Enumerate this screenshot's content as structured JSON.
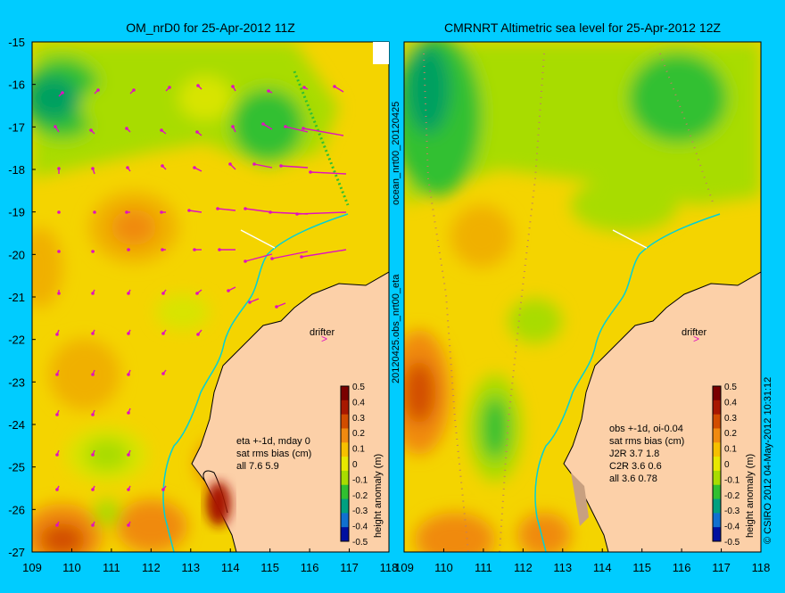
{
  "left_panel": {
    "title": "OM_nrD0 for 25-Apr-2012 11Z",
    "annotation_lines": [
      "eta +-1d, mday 0",
      "sat rms bias (cm)",
      "all 7.6 5.9"
    ],
    "drifter_label": "drifter"
  },
  "right_panel": {
    "title": "CMRNRT Altimetric sea level  for 25-Apr-2012 12Z",
    "annotation_lines": [
      "obs +-1d, oi-0.04",
      "sat rms bias (cm)",
      "J2R   3.7 1.8",
      "C2R   3.6 0.6",
      "all 3.6 0.78"
    ],
    "drifter_label": "drifter"
  },
  "x_ticks": [
    "109",
    "110",
    "111",
    "112",
    "113",
    "114",
    "115",
    "116",
    "117",
    "118"
  ],
  "y_ticks": [
    "-15",
    "-16",
    "-17",
    "-18",
    "-19",
    "-20",
    "-21",
    "-22",
    "-23",
    "-24",
    "-25",
    "-26",
    "-27"
  ],
  "colorbar": {
    "label": "height anomaly (m)",
    "ticks": [
      "0.5",
      "0.4",
      "0.3",
      "0.2",
      "0.1",
      "0",
      "-0.1",
      "-0.2",
      "-0.3",
      "-0.4",
      "-0.5"
    ],
    "colors": [
      "#7a0000",
      "#a81800",
      "#d24d00",
      "#f08a10",
      "#f6c000",
      "#e8e800",
      "#a8dc00",
      "#30c030",
      "#00a080",
      "#1070d0",
      "#0010a0"
    ]
  },
  "side_text": {
    "left_upper": "ocean_nrt00_20120425",
    "left_lower": "20120425.obs_nrt00_eta",
    "right": "© CSIRO 2012  04-May-2012 10:31:12"
  },
  "colors": {
    "background": "#00ccff",
    "land": "#fcd0a8",
    "coast_line": "#00d0d8",
    "vector": "#e010c0"
  }
}
